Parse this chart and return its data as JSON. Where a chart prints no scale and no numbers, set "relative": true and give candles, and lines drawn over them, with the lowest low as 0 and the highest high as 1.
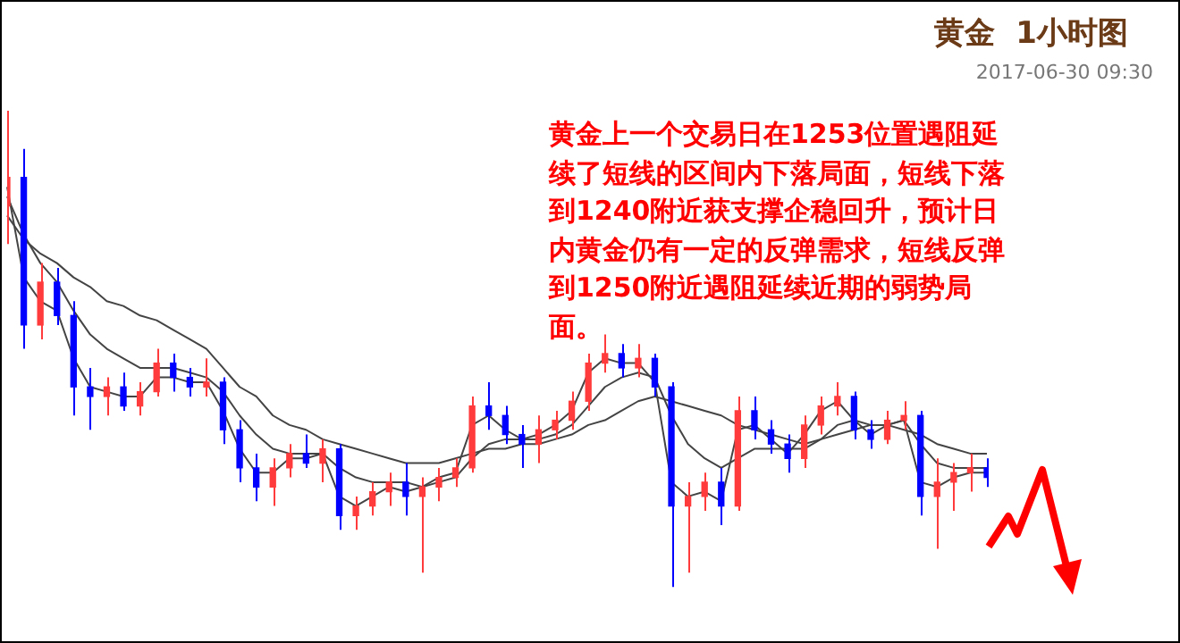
{
  "chart_data": {
    "type": "candlestick",
    "title": "黄金  1小时图",
    "subtitle": "2017-06-30 09:30",
    "relative": true,
    "annotations": [
      "黄金上一个交易日在1253位置遇阻延续了短线的区间内下落局面，短线下落到1240附近获支撑企稳回升，预计日内黄金仍有一定的反弹需求，短线反弹到1250附近遇阻延续近期的弱势局面。"
    ],
    "categories": [
      null,
      null,
      null,
      null,
      null,
      null,
      null,
      null,
      null,
      null,
      null,
      null,
      null,
      null,
      null,
      null,
      null,
      null,
      null,
      null,
      null,
      null,
      null,
      null,
      null,
      null,
      null,
      null,
      null,
      null,
      null,
      null,
      null,
      null,
      null,
      null,
      null,
      null,
      null,
      null,
      null,
      null,
      null,
      null,
      null,
      null,
      null,
      null,
      null,
      null,
      null,
      null,
      null,
      null,
      null,
      null,
      null,
      null,
      null,
      null
    ],
    "series": [
      {
        "type": "line",
        "color": "#444444",
        "values": [
          0.78,
          0.73,
          0.7,
          0.68,
          0.65,
          0.63,
          0.6,
          0.59,
          0.57,
          0.56,
          0.54,
          0.52,
          0.5,
          0.46,
          0.42,
          0.4,
          0.36,
          0.34,
          0.33,
          0.31,
          0.3,
          0.29,
          0.28,
          0.27,
          0.26,
          0.26,
          0.26,
          0.27,
          0.28,
          0.29,
          0.29,
          0.3,
          0.3,
          0.31,
          0.32,
          0.34,
          0.35,
          0.37,
          0.39,
          0.4,
          0.39,
          0.38,
          0.37,
          0.36,
          0.34,
          0.33,
          0.32,
          0.31,
          0.3,
          0.31,
          0.32,
          0.33,
          0.34,
          0.34,
          0.33,
          0.32,
          0.3,
          0.29,
          0.28,
          0.28
        ]
      },
      {
        "type": "line",
        "color": "#444444",
        "values": [
          0.82,
          0.74,
          0.68,
          0.64,
          0.58,
          0.53,
          0.5,
          0.48,
          0.46,
          0.46,
          0.46,
          0.45,
          0.44,
          0.41,
          0.36,
          0.32,
          0.29,
          0.28,
          0.28,
          0.28,
          0.25,
          0.23,
          0.22,
          0.22,
          0.22,
          0.21,
          0.22,
          0.23,
          0.27,
          0.3,
          0.31,
          0.31,
          0.31,
          0.32,
          0.34,
          0.38,
          0.42,
          0.44,
          0.45,
          0.44,
          0.36,
          0.3,
          0.27,
          0.25,
          0.27,
          0.29,
          0.29,
          0.29,
          0.29,
          0.31,
          0.34,
          0.35,
          0.34,
          0.34,
          0.35,
          0.3,
          0.26,
          0.25,
          0.25,
          0.25
        ]
      },
      {
        "type": "line",
        "color": "#444444",
        "values": [
          0.84,
          0.65,
          0.6,
          0.58,
          0.48,
          0.42,
          0.41,
          0.4,
          0.4,
          0.44,
          0.44,
          0.43,
          0.43,
          0.37,
          0.29,
          0.24,
          0.24,
          0.27,
          0.27,
          0.28,
          0.19,
          0.17,
          0.19,
          0.21,
          0.2,
          0.21,
          0.23,
          0.24,
          0.34,
          0.36,
          0.33,
          0.31,
          0.32,
          0.34,
          0.37,
          0.45,
          0.48,
          0.47,
          0.47,
          0.43,
          0.22,
          0.19,
          0.2,
          0.18,
          0.33,
          0.34,
          0.31,
          0.28,
          0.32,
          0.37,
          0.39,
          0.35,
          0.32,
          0.34,
          0.35,
          0.22,
          0.21,
          0.23,
          0.24,
          0.24
        ]
      },
      {
        "type": "candlestick",
        "ohlc": [
          [
            0.8,
            1.0,
            0.72,
            0.86
          ],
          [
            0.86,
            0.92,
            0.5,
            0.55
          ],
          [
            0.55,
            0.68,
            0.52,
            0.64
          ],
          [
            0.64,
            0.67,
            0.55,
            0.57
          ],
          [
            0.57,
            0.6,
            0.36,
            0.42
          ],
          [
            0.42,
            0.46,
            0.33,
            0.4
          ],
          [
            0.4,
            0.44,
            0.36,
            0.42
          ],
          [
            0.42,
            0.45,
            0.37,
            0.38
          ],
          [
            0.38,
            0.43,
            0.36,
            0.41
          ],
          [
            0.41,
            0.5,
            0.4,
            0.47
          ],
          [
            0.47,
            0.49,
            0.41,
            0.44
          ],
          [
            0.44,
            0.46,
            0.4,
            0.42
          ],
          [
            0.42,
            0.48,
            0.4,
            0.43
          ],
          [
            0.43,
            0.44,
            0.3,
            0.33
          ],
          [
            0.33,
            0.35,
            0.22,
            0.25
          ],
          [
            0.25,
            0.28,
            0.18,
            0.21
          ],
          [
            0.21,
            0.27,
            0.17,
            0.25
          ],
          [
            0.25,
            0.3,
            0.23,
            0.28
          ],
          [
            0.28,
            0.32,
            0.25,
            0.26
          ],
          [
            0.26,
            0.31,
            0.22,
            0.29
          ],
          [
            0.29,
            0.3,
            0.12,
            0.15
          ],
          [
            0.15,
            0.19,
            0.12,
            0.17
          ],
          [
            0.17,
            0.22,
            0.15,
            0.2
          ],
          [
            0.2,
            0.24,
            0.17,
            0.22
          ],
          [
            0.22,
            0.26,
            0.15,
            0.19
          ],
          [
            0.19,
            0.23,
            0.03,
            0.21
          ],
          [
            0.21,
            0.25,
            0.18,
            0.23
          ],
          [
            0.23,
            0.27,
            0.21,
            0.25
          ],
          [
            0.25,
            0.4,
            0.24,
            0.38
          ],
          [
            0.38,
            0.43,
            0.33,
            0.36
          ],
          [
            0.36,
            0.38,
            0.3,
            0.32
          ],
          [
            0.32,
            0.34,
            0.25,
            0.3
          ],
          [
            0.3,
            0.36,
            0.26,
            0.33
          ],
          [
            0.33,
            0.37,
            0.31,
            0.35
          ],
          [
            0.35,
            0.41,
            0.33,
            0.39
          ],
          [
            0.39,
            0.49,
            0.37,
            0.47
          ],
          [
            0.47,
            0.53,
            0.45,
            0.49
          ],
          [
            0.49,
            0.51,
            0.44,
            0.46
          ],
          [
            0.46,
            0.51,
            0.44,
            0.48
          ],
          [
            0.48,
            0.49,
            0.4,
            0.42
          ],
          [
            0.42,
            0.43,
            0.0,
            0.17
          ],
          [
            0.17,
            0.22,
            0.03,
            0.19
          ],
          [
            0.19,
            0.24,
            0.16,
            0.22
          ],
          [
            0.22,
            0.25,
            0.13,
            0.17
          ],
          [
            0.17,
            0.4,
            0.16,
            0.37
          ],
          [
            0.37,
            0.4,
            0.31,
            0.33
          ],
          [
            0.33,
            0.35,
            0.28,
            0.3
          ],
          [
            0.3,
            0.32,
            0.24,
            0.27
          ],
          [
            0.27,
            0.36,
            0.25,
            0.34
          ],
          [
            0.34,
            0.4,
            0.32,
            0.38
          ],
          [
            0.38,
            0.43,
            0.36,
            0.4
          ],
          [
            0.4,
            0.41,
            0.31,
            0.33
          ],
          [
            0.33,
            0.35,
            0.29,
            0.31
          ],
          [
            0.31,
            0.37,
            0.3,
            0.35
          ],
          [
            0.35,
            0.39,
            0.33,
            0.36
          ],
          [
            0.36,
            0.37,
            0.15,
            0.19
          ],
          [
            0.19,
            0.27,
            0.08,
            0.22
          ],
          [
            0.22,
            0.26,
            0.16,
            0.24
          ],
          [
            0.24,
            0.28,
            0.2,
            0.25
          ],
          [
            0.25,
            0.27,
            0.21,
            0.23
          ]
        ],
        "colors": [
          "#ff3b3b",
          "#0000ff",
          "#ff3b3b",
          "#0000ff",
          "#0000ff",
          "#0000ff",
          "#ff3b3b",
          "#0000ff",
          "#ff3b3b",
          "#ff3b3b",
          "#0000ff",
          "#0000ff",
          "#ff3b3b",
          "#0000ff",
          "#0000ff",
          "#0000ff",
          "#ff3b3b",
          "#ff3b3b",
          "#0000ff",
          "#ff3b3b",
          "#0000ff",
          "#ff3b3b",
          "#ff3b3b",
          "#ff3b3b",
          "#0000ff",
          "#ff3b3b",
          "#ff3b3b",
          "#ff3b3b",
          "#ff3b3b",
          "#0000ff",
          "#0000ff",
          "#0000ff",
          "#ff3b3b",
          "#ff3b3b",
          "#ff3b3b",
          "#ff3b3b",
          "#ff3b3b",
          "#0000ff",
          "#ff3b3b",
          "#0000ff",
          "#0000ff",
          "#ff3b3b",
          "#ff3b3b",
          "#0000ff",
          "#ff3b3b",
          "#0000ff",
          "#0000ff",
          "#0000ff",
          "#ff3b3b",
          "#ff3b3b",
          "#ff3b3b",
          "#0000ff",
          "#0000ff",
          "#ff3b3b",
          "#ff3b3b",
          "#0000ff",
          "#ff3b3b",
          "#ff3b3b",
          "#ff3b3b",
          "#0000ff"
        ]
      }
    ]
  }
}
